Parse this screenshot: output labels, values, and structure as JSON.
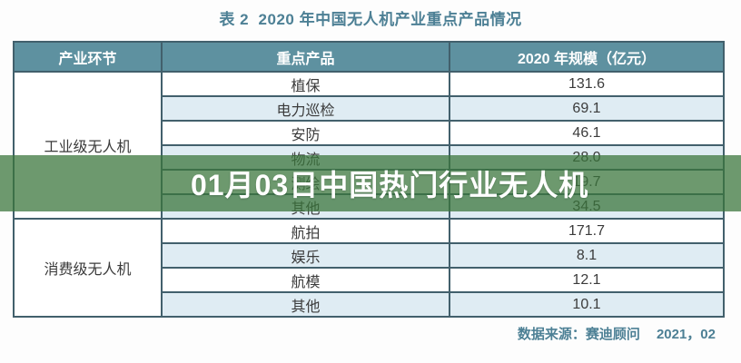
{
  "title": "表 2  2020 年中国无人机产业重点产品情况",
  "overlay": {
    "text": "01月03日中国热门行业无人机",
    "background_color": "#3a763c"
  },
  "table": {
    "headers": [
      "产业环节",
      "重点产品",
      "2020 年规模（亿元）"
    ],
    "sections": [
      {
        "category": "工业级无人机",
        "rows": [
          {
            "product": "植保",
            "value": "131.6"
          },
          {
            "product": "电力巡检",
            "value": "69.1"
          },
          {
            "product": "安防",
            "value": "46.1"
          },
          {
            "product": "物流",
            "value": "28.0"
          },
          {
            "product": "测绘",
            "value": "19.7"
          },
          {
            "product": "其他",
            "value": "34.5"
          }
        ]
      },
      {
        "category": "消费级无人机",
        "rows": [
          {
            "product": "航拍",
            "value": "171.7"
          },
          {
            "product": "娱乐",
            "value": "8.1"
          },
          {
            "product": "航模",
            "value": "12.1"
          },
          {
            "product": "其他",
            "value": "10.1"
          }
        ]
      }
    ]
  },
  "footer": {
    "source": "数据来源：赛迪顾问",
    "issue": "2021，02"
  },
  "colors": {
    "header_bg": "#5e91a0",
    "row_alt_bg": "#dfecf3",
    "border": "#42606c",
    "accent_teal": "#4d8095",
    "overlay_green": "#3a763c"
  }
}
